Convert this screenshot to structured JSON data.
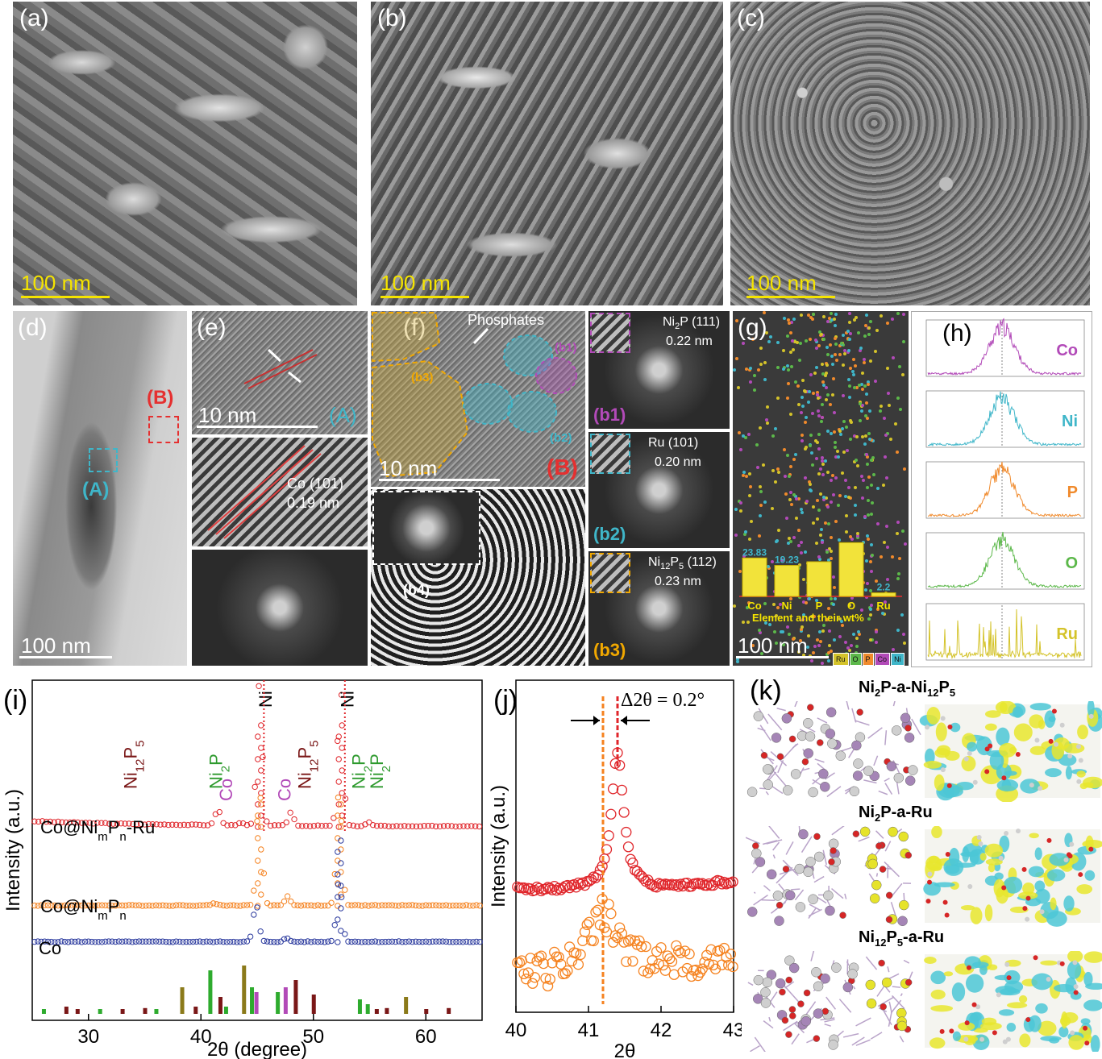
{
  "panels": {
    "a": {
      "label": "(a)",
      "scale": "100 nm"
    },
    "b": {
      "label": "(b)",
      "scale": "100 nm"
    },
    "c": {
      "label": "(c)",
      "scale": "100 nm"
    },
    "d": {
      "label": "(d)",
      "scale": "100 nm",
      "region_b": "(B)",
      "region_a": "(A)"
    },
    "e": {
      "label": "(e)",
      "scale": "10 nm",
      "region": "(A)",
      "fringe_label": "Co (101)",
      "fringe_d": "0.19 nm"
    },
    "f": {
      "label": "(f)",
      "scale": "10 nm",
      "region": "(B)",
      "phosphates": "Phosphates",
      "b1": "(b1)",
      "b2": "(b2)",
      "b3": "(b3)",
      "b4": "(b4)"
    },
    "b1": {
      "label": "(b1)",
      "phase": "Ni",
      "phase_sub": "2",
      "phase_rest": "P (111)",
      "d": "0.22 nm"
    },
    "b2": {
      "label": "(b2)",
      "phase": "Ru (101)",
      "d": "0.20 nm"
    },
    "b3": {
      "label": "(b3)",
      "phase_a": "Ni",
      "phase_sub1": "12",
      "phase_b": "P",
      "phase_sub2": "5",
      "phase_rest": " (112)",
      "d": "0.23 nm"
    },
    "g": {
      "label": "(g)",
      "scale": "100 nm",
      "xlabel": "Element and their wt%",
      "legend": [
        "Ru",
        "O",
        "P",
        "Co",
        "Ni"
      ]
    },
    "h": {
      "label": "(h)",
      "profiles": [
        "Co",
        "Ni",
        "P",
        "O",
        "Ru"
      ]
    },
    "i": {
      "label": "(i)",
      "ylabel": "Intensity (a.u.)",
      "xlabel": "2θ (degree)",
      "traces": [
        "Co@NimPn-Ru",
        "Co@NimPn",
        "Co"
      ]
    },
    "j": {
      "label": "(j)",
      "ylabel": "Intensity (a.u.)",
      "xlabel": "2θ",
      "annotation": "Δ2θ = 0.2°"
    },
    "k": {
      "label": "(k)",
      "models": [
        "Ni2P-a-Ni12P5",
        "Ni2P-a-Ru",
        "Ni12P5-a-Ru"
      ]
    }
  },
  "eds_colors": {
    "Ru": "#d4c32a",
    "O": "#5cb84a",
    "P": "#f08a2c",
    "Co": "#b24ab8",
    "Ni": "#3fb6c9"
  },
  "chart_data": [
    {
      "type": "bar",
      "title": "",
      "xlabel": "Element and their wt%",
      "categories": [
        "Co",
        "Ni",
        "P",
        "O",
        "Ru"
      ],
      "values": [
        23.83,
        19.23,
        21.5,
        33.35,
        2.2
      ],
      "value_labels": [
        "23.83",
        "19.23",
        "",
        "",
        "2.2"
      ],
      "ylim": [
        0,
        40
      ]
    },
    {
      "type": "line",
      "title": "",
      "xlabel": "2θ (degree)",
      "ylabel": "Intensity (a.u.)",
      "xlim": [
        25,
        65
      ],
      "x_ticks": [
        30,
        40,
        50,
        60
      ],
      "series": [
        {
          "name": "Co@NimPn-Ru",
          "color": "#e0262b",
          "peaks": [
            [
              41.5,
              0.35
            ],
            [
              43.5,
              0.06
            ],
            [
              45.2,
              3.2
            ],
            [
              48.0,
              0.3
            ],
            [
              52.4,
              3.2
            ],
            [
              54.9,
              0.08
            ]
          ]
        },
        {
          "name": "Co@NimPn",
          "color": "#f5821f",
          "peaks": [
            [
              41.2,
              0.05
            ],
            [
              45.2,
              2.6
            ],
            [
              47.7,
              0.2
            ],
            [
              52.3,
              2.6
            ]
          ]
        },
        {
          "name": "Co",
          "color": "#2b3a9e",
          "peaks": [
            [
              44.9,
              0.9
            ],
            [
              47.6,
              0.08
            ],
            [
              52.3,
              1.5
            ]
          ]
        }
      ],
      "peak_labels": [
        {
          "text": "Ni12P5",
          "x": 33.7,
          "color": "#7a1717"
        },
        {
          "text": "Ni2P",
          "x": 41.3,
          "color": "#2e9a2e"
        },
        {
          "text": "Ni",
          "x": 45.7,
          "color": "#000000"
        },
        {
          "text": "Ni12P5",
          "x": 49.2,
          "color": "#7a1717"
        },
        {
          "text": "Ni",
          "x": 53.0,
          "color": "#000000"
        },
        {
          "text": "Ni2P",
          "x": 54.0,
          "color": "#2e9a2e"
        },
        {
          "text": "Ni2P",
          "x": 55.6,
          "color": "#2e9a2e"
        },
        {
          "text": "Co",
          "x": 42.2,
          "color": "#b24ab8"
        },
        {
          "text": "Co",
          "x": 47.4,
          "color": "#b24ab8"
        }
      ],
      "reference_sticks": [
        {
          "x": 26.0,
          "h": 0.1,
          "c": "#2eab2e"
        },
        {
          "x": 28.0,
          "h": 0.15,
          "c": "#7a1717"
        },
        {
          "x": 29.0,
          "h": 0.1,
          "c": "#7a1717"
        },
        {
          "x": 31.0,
          "h": 0.1,
          "c": "#2eab2e"
        },
        {
          "x": 33.0,
          "h": 0.1,
          "c": "#7a1717"
        },
        {
          "x": 35.0,
          "h": 0.12,
          "c": "#7a1717"
        },
        {
          "x": 36.0,
          "h": 0.1,
          "c": "#2eab2e"
        },
        {
          "x": 38.3,
          "h": 0.55,
          "c": "#8b7a1a"
        },
        {
          "x": 39.5,
          "h": 0.15,
          "c": "#7a1717"
        },
        {
          "x": 40.8,
          "h": 0.9,
          "c": "#2eab2e"
        },
        {
          "x": 41.7,
          "h": 0.35,
          "c": "#7a1717"
        },
        {
          "x": 42.2,
          "h": 0.15,
          "c": "#2eab2e"
        },
        {
          "x": 43.8,
          "h": 1.0,
          "c": "#8b7a1a"
        },
        {
          "x": 44.5,
          "h": 0.55,
          "c": "#2eab2e"
        },
        {
          "x": 44.9,
          "h": 0.45,
          "c": "#b24ab8"
        },
        {
          "x": 46.8,
          "h": 0.45,
          "c": "#2eab2e"
        },
        {
          "x": 47.5,
          "h": 0.55,
          "c": "#b24ab8"
        },
        {
          "x": 48.4,
          "h": 0.7,
          "c": "#7a1717"
        },
        {
          "x": 50.0,
          "h": 0.4,
          "c": "#7a1717"
        },
        {
          "x": 54.1,
          "h": 0.3,
          "c": "#2eab2e"
        },
        {
          "x": 54.8,
          "h": 0.2,
          "c": "#2eab2e"
        },
        {
          "x": 55.6,
          "h": 0.1,
          "c": "#7a1717"
        },
        {
          "x": 56.5,
          "h": 0.12,
          "c": "#7a1717"
        },
        {
          "x": 58.2,
          "h": 0.35,
          "c": "#8b7a1a"
        },
        {
          "x": 60.0,
          "h": 0.1,
          "c": "#7a1717"
        },
        {
          "x": 62.0,
          "h": 0.12,
          "c": "#7a1717"
        }
      ]
    },
    {
      "type": "scatter",
      "title": "",
      "xlabel": "2θ",
      "ylabel": "Intensity (a.u.)",
      "xlim": [
        40,
        43
      ],
      "x_ticks": [
        40,
        41,
        42,
        43
      ],
      "series": [
        {
          "name": "",
          "color": "#e0262b",
          "peak_x": 41.4,
          "baseline": 0.62
        },
        {
          "name": "",
          "color": "#f5821f",
          "peak_x": 41.2,
          "baseline": 0.2
        }
      ],
      "markers": [
        41.2,
        41.4
      ],
      "annotation": "Δ2θ = 0.2°"
    },
    {
      "type": "line",
      "title": "",
      "categories": [
        "Co",
        "Ni",
        "P",
        "O",
        "Ru"
      ],
      "colors": [
        "#b24ab8",
        "#3fb6c9",
        "#f08a2c",
        "#5cb84a",
        "#d4c32a"
      ]
    }
  ]
}
